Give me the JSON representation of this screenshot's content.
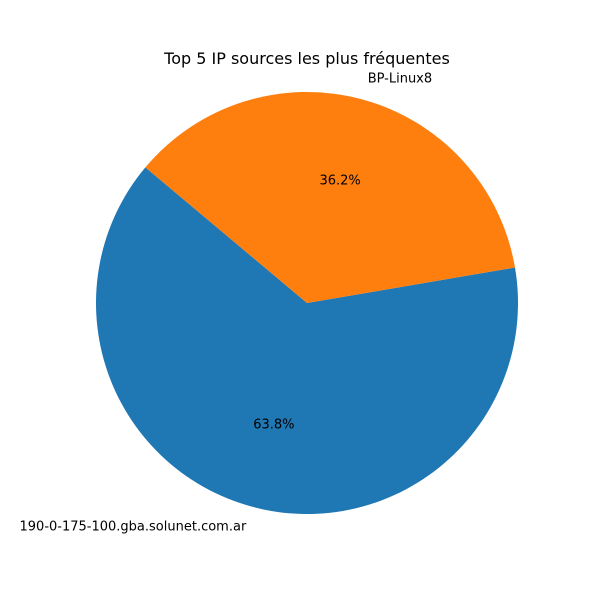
{
  "chart_data": {
    "type": "pie",
    "title": "Top 5 IP sources les plus fréquentes",
    "slices": [
      {
        "label": "190-0-175-100.gba.solunet.com.ar",
        "value": 63.8,
        "pct_label": "63.8%",
        "color": "#1f77b4"
      },
      {
        "label": "BP-Linux8",
        "value": 36.2,
        "pct_label": "36.2%",
        "color": "#ff7f0e"
      }
    ],
    "start_angle_deg": 140,
    "direction": "counterclockwise",
    "legend": "none"
  }
}
